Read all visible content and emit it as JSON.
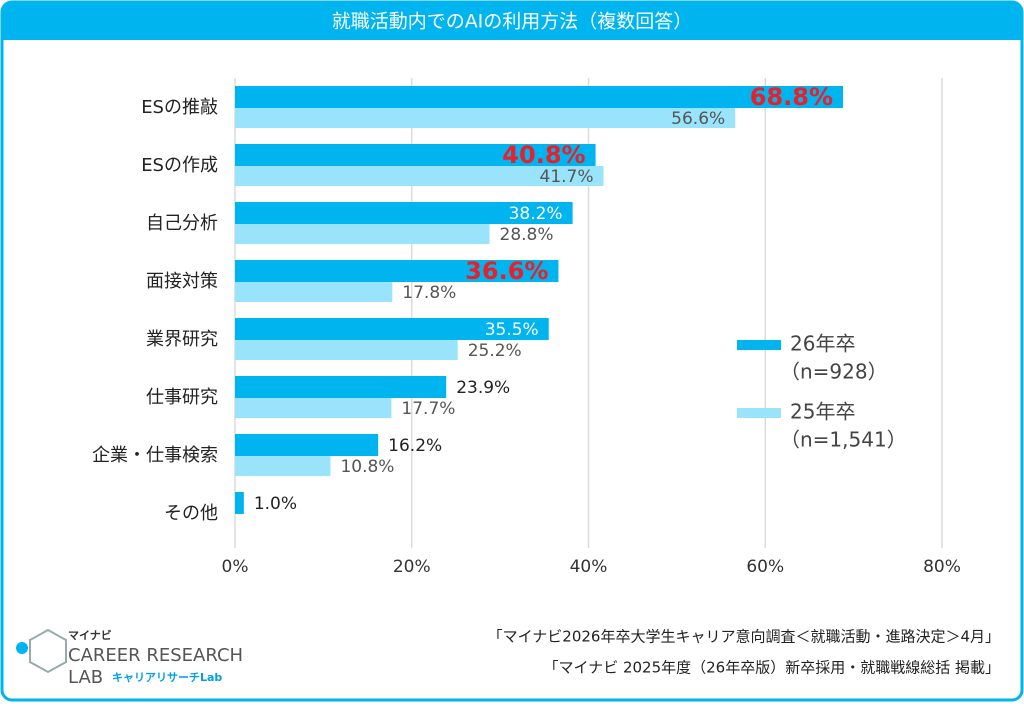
{
  "chart_data": {
    "type": "hbar",
    "title": "就職活動内でのAIの利用方法（複数回答）",
    "categories": [
      "ESの推敲",
      "ESの作成",
      "自己分析",
      "面接対策",
      "業界研究",
      "仕事研究",
      "企業・仕事検索",
      "その他"
    ],
    "series": [
      {
        "name": "26年卒",
        "note": "（n=928）",
        "color": "#00b4ef",
        "values": [
          68.8,
          40.8,
          38.2,
          36.6,
          35.5,
          23.9,
          16.2,
          1.0
        ],
        "value_labels": [
          "68.8%",
          "40.8%",
          "38.2%",
          "36.6%",
          "35.5%",
          "23.9%",
          "16.2%",
          "1.0%"
        ],
        "value_label_colors": [
          "#e8202a",
          "#e8202a",
          "#ffffff",
          "#e8202a",
          "#ffffff",
          "#222222",
          "#222222",
          "#222222"
        ]
      },
      {
        "name": "25年卒",
        "note": "（n=1,541）",
        "color": "#99e4fb",
        "values": [
          56.6,
          41.7,
          28.8,
          17.8,
          25.2,
          17.7,
          10.8,
          null
        ],
        "value_labels": [
          "56.6%",
          "41.7%",
          "28.8%",
          "17.8%",
          "25.2%",
          "17.7%",
          "10.8%",
          null
        ],
        "value_label_colors": [
          "#555555",
          "#555555",
          "#555555",
          "#555555",
          "#555555",
          "#555555",
          "#555555",
          null
        ]
      }
    ],
    "emphasis_color": "#e8202a",
    "xlim": [
      0,
      80
    ],
    "xticks": [
      {
        "value": 0,
        "label": "0%"
      },
      {
        "value": 20,
        "label": "20%"
      },
      {
        "value": 40,
        "label": "40%"
      },
      {
        "value": 60,
        "label": "60%"
      },
      {
        "value": 80,
        "label": "80%"
      }
    ],
    "grid": true
  },
  "footer": {
    "logo_top": "マイナビ",
    "logo_line1": "CAREER RESEARCH",
    "logo_line2": "LAB",
    "logo_sub": "キャリアリサーチLab",
    "sources": [
      "「マイナビ2026年卒大学生キャリア意向調査＜就職活動・進路決定＞4月」",
      "「マイナビ 2025年度（26年卒版）新卒採用・就職戦線総括 掲載」"
    ]
  }
}
